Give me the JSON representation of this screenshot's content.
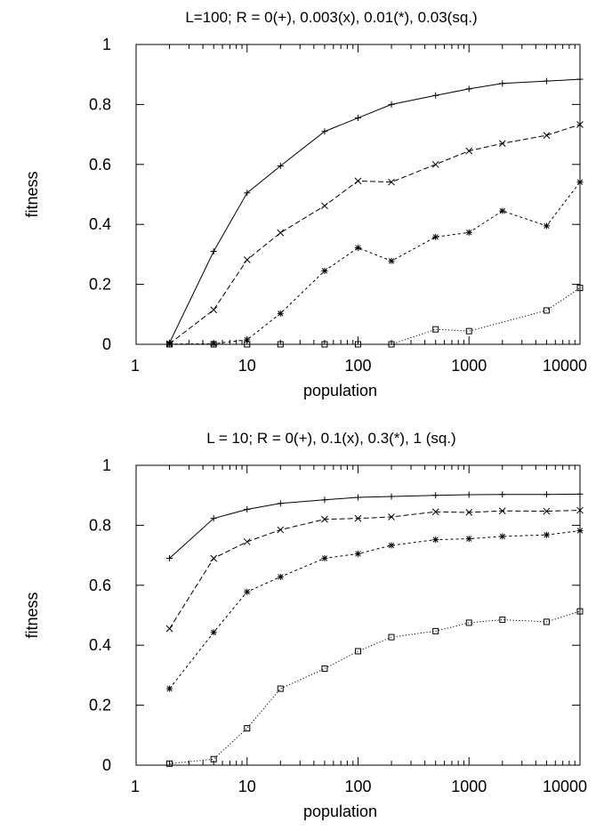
{
  "chart_data": [
    {
      "type": "line",
      "title": "L=100; R = 0(+), 0.003(x), 0.01(*), 0.03(sq.)",
      "xlabel": "population",
      "ylabel": "fitness",
      "xscale": "log",
      "xlim": [
        1,
        10000
      ],
      "ylim": [
        0,
        1
      ],
      "xticks": [
        "1",
        "10",
        "100",
        "1000",
        "10000"
      ],
      "yticks": [
        "0",
        "0.2",
        "0.4",
        "0.6",
        "0.8",
        "1"
      ],
      "grid": false,
      "legend": "none",
      "x": [
        2,
        5,
        10,
        20,
        50,
        100,
        200,
        500,
        1000,
        2000,
        5000,
        10000
      ],
      "series": [
        {
          "marker": "plus",
          "dash": "solid",
          "values": [
            0.005,
            0.31,
            0.505,
            0.595,
            0.71,
            0.755,
            0.8,
            0.83,
            0.852,
            0.87,
            0.878,
            0.884
          ]
        },
        {
          "marker": "x",
          "dash": "dashed",
          "values": [
            0.002,
            0.115,
            0.282,
            0.372,
            0.462,
            0.545,
            0.541,
            0.6,
            0.645,
            0.67,
            0.697,
            0.733
          ]
        },
        {
          "marker": "star",
          "dash": "short-dashed",
          "values": [
            0.001,
            0.002,
            0.015,
            0.103,
            0.245,
            0.322,
            0.278,
            0.358,
            0.373,
            0.445,
            0.395,
            0.541
          ]
        },
        {
          "marker": "square",
          "dash": "dotted",
          "values": [
            0.0,
            0.0,
            0.0,
            0.0,
            0.0,
            0.0,
            0.0,
            0.05,
            0.044,
            null,
            0.113,
            0.188
          ]
        }
      ]
    },
    {
      "type": "line",
      "title": "L = 10; R = 0(+), 0.1(x), 0.3(*), 1 (sq.)",
      "xlabel": "population",
      "ylabel": "fitness",
      "xscale": "log",
      "xlim": [
        1,
        10000
      ],
      "ylim": [
        0,
        1
      ],
      "xticks": [
        "1",
        "10",
        "100",
        "1000",
        "10000"
      ],
      "yticks": [
        "0",
        "0.2",
        "0.4",
        "0.6",
        "0.8",
        "1"
      ],
      "grid": false,
      "legend": "none",
      "x": [
        2,
        5,
        10,
        20,
        50,
        100,
        200,
        500,
        1000,
        2000,
        5000,
        10000
      ],
      "series": [
        {
          "marker": "plus",
          "dash": "solid",
          "values": [
            0.69,
            0.823,
            0.853,
            0.873,
            0.885,
            0.893,
            0.896,
            0.9,
            0.902,
            0.903,
            0.903,
            0.904
          ]
        },
        {
          "marker": "x",
          "dash": "dashed",
          "values": [
            0.455,
            0.69,
            0.745,
            0.785,
            0.82,
            0.823,
            0.828,
            0.845,
            0.843,
            0.848,
            0.847,
            0.85
          ]
        },
        {
          "marker": "star",
          "dash": "short-dashed",
          "values": [
            0.255,
            0.443,
            0.578,
            0.628,
            0.69,
            0.705,
            0.733,
            0.752,
            0.755,
            0.763,
            0.768,
            0.782
          ]
        },
        {
          "marker": "square",
          "dash": "dotted",
          "values": [
            0.005,
            0.02,
            0.123,
            0.255,
            0.322,
            0.38,
            0.427,
            0.447,
            0.475,
            0.485,
            0.478,
            0.513
          ]
        }
      ]
    }
  ]
}
